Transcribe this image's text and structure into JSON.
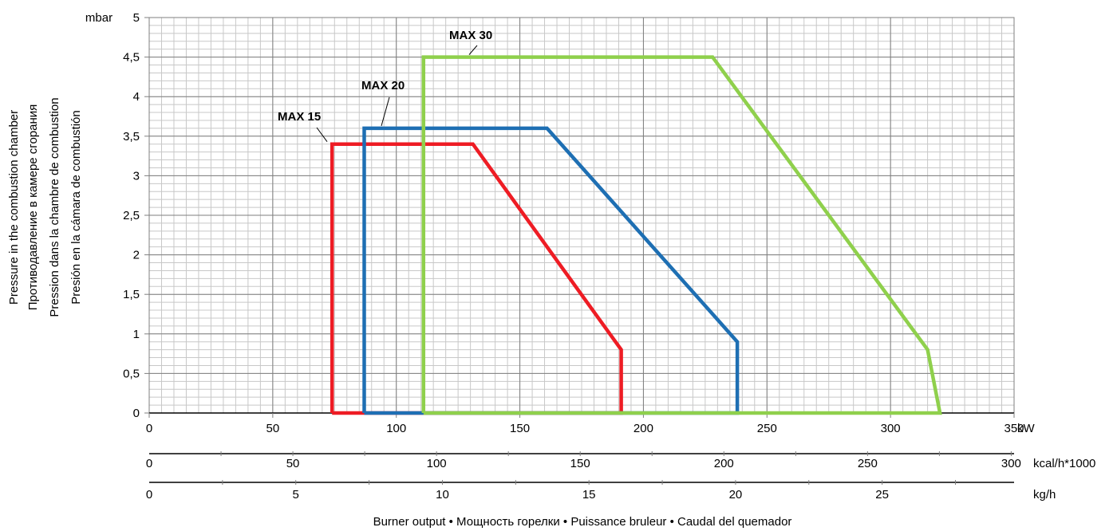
{
  "chart_data": {
    "type": "line",
    "y_unit": "mbar",
    "ylim": [
      0,
      5
    ],
    "y_ticks": [
      "0",
      "0,5",
      "1",
      "1,5",
      "2",
      "2,5",
      "3",
      "3,5",
      "4",
      "4,5",
      "5"
    ],
    "y_tick_values": [
      0,
      0.5,
      1,
      1.5,
      2,
      2.5,
      3,
      3.5,
      4,
      4.5,
      5
    ],
    "ylabel_lines": [
      "Pressure in the combustion chamber",
      "Противодавление в камере сгорания",
      "Pression dans la chambre de combustion",
      "Presión en la cámara de combustión"
    ],
    "xlim": [
      0,
      350
    ],
    "x_axes": [
      {
        "unit": "kW",
        "ticks": [
          "0",
          "50",
          "100",
          "150",
          "200",
          "250",
          "300",
          "350"
        ],
        "tick_values": [
          0,
          50,
          100,
          150,
          200,
          250,
          300,
          350
        ]
      },
      {
        "unit": "kcal/h*1000",
        "ticks": [
          "0",
          "50",
          "100",
          "150",
          "200",
          "250",
          "300"
        ],
        "tick_values": [
          0,
          50,
          100,
          150,
          200,
          250,
          300
        ],
        "range": [
          0,
          301
        ]
      },
      {
        "unit": "kg/h",
        "ticks": [
          "0",
          "5",
          "10",
          "15",
          "20",
          "25"
        ],
        "tick_values": [
          0,
          5,
          10,
          15,
          20,
          25
        ],
        "range": [
          0,
          29.5
        ]
      }
    ],
    "xlabel": "Burner output • Мощность горелки • Puissance bruleur • Caudal del quemador",
    "grid": true,
    "series": [
      {
        "name": "MAX 15",
        "color": "#ee1c24",
        "x": [
          74,
          74,
          131,
          191,
          191,
          74
        ],
        "y": [
          0,
          3.4,
          3.4,
          0.8,
          0,
          0
        ]
      },
      {
        "name": "MAX 20",
        "color": "#1e6fb3",
        "x": [
          87,
          87,
          161,
          238,
          238,
          87
        ],
        "y": [
          0,
          3.6,
          3.6,
          0.9,
          0,
          0
        ]
      },
      {
        "name": "MAX 30",
        "color": "#8fd04c",
        "x": [
          111,
          111,
          228,
          315,
          320,
          111
        ],
        "y": [
          0,
          4.5,
          4.5,
          0.8,
          0,
          0
        ]
      }
    ]
  }
}
